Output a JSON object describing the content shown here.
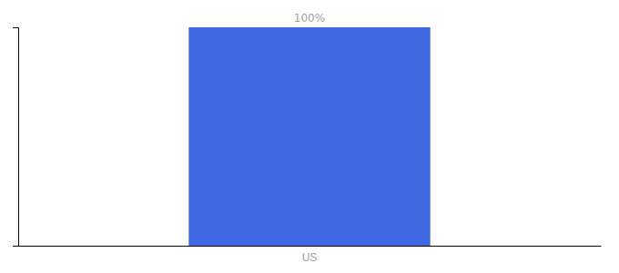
{
  "chart_data": {
    "type": "bar",
    "categories": [
      "US"
    ],
    "values": [
      100
    ],
    "value_labels": [
      "100%"
    ],
    "color": "#4169E1",
    "ylim": [
      0,
      100
    ],
    "yticks": [],
    "data_labels": true,
    "tick_labels": "x",
    "grid": false
  }
}
